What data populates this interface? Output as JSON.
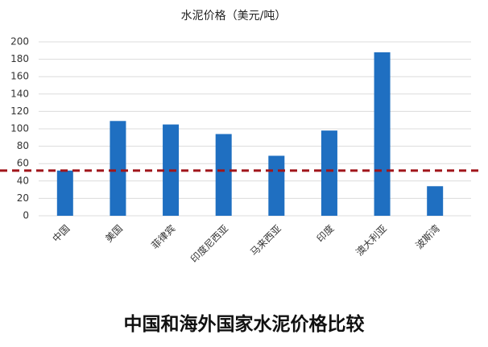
{
  "chart_data": {
    "type": "bar",
    "title": "水泥价格（美元/吨）",
    "caption": "中国和海外国家水泥价格比较",
    "categories": [
      "中国",
      "美国",
      "菲律宾",
      "印度尼西亚",
      "马来西亚",
      "印度",
      "澳大利亚",
      "波斯湾"
    ],
    "values": [
      52,
      109,
      105,
      94,
      69,
      98,
      188,
      34
    ],
    "color": "#1f6fc1",
    "ylim": [
      0,
      200
    ],
    "yticks": [
      0,
      20,
      40,
      60,
      80,
      100,
      120,
      140,
      160,
      180,
      200
    ],
    "grid": true,
    "reference_line": {
      "value": 52,
      "color": "#a0151a"
    }
  }
}
